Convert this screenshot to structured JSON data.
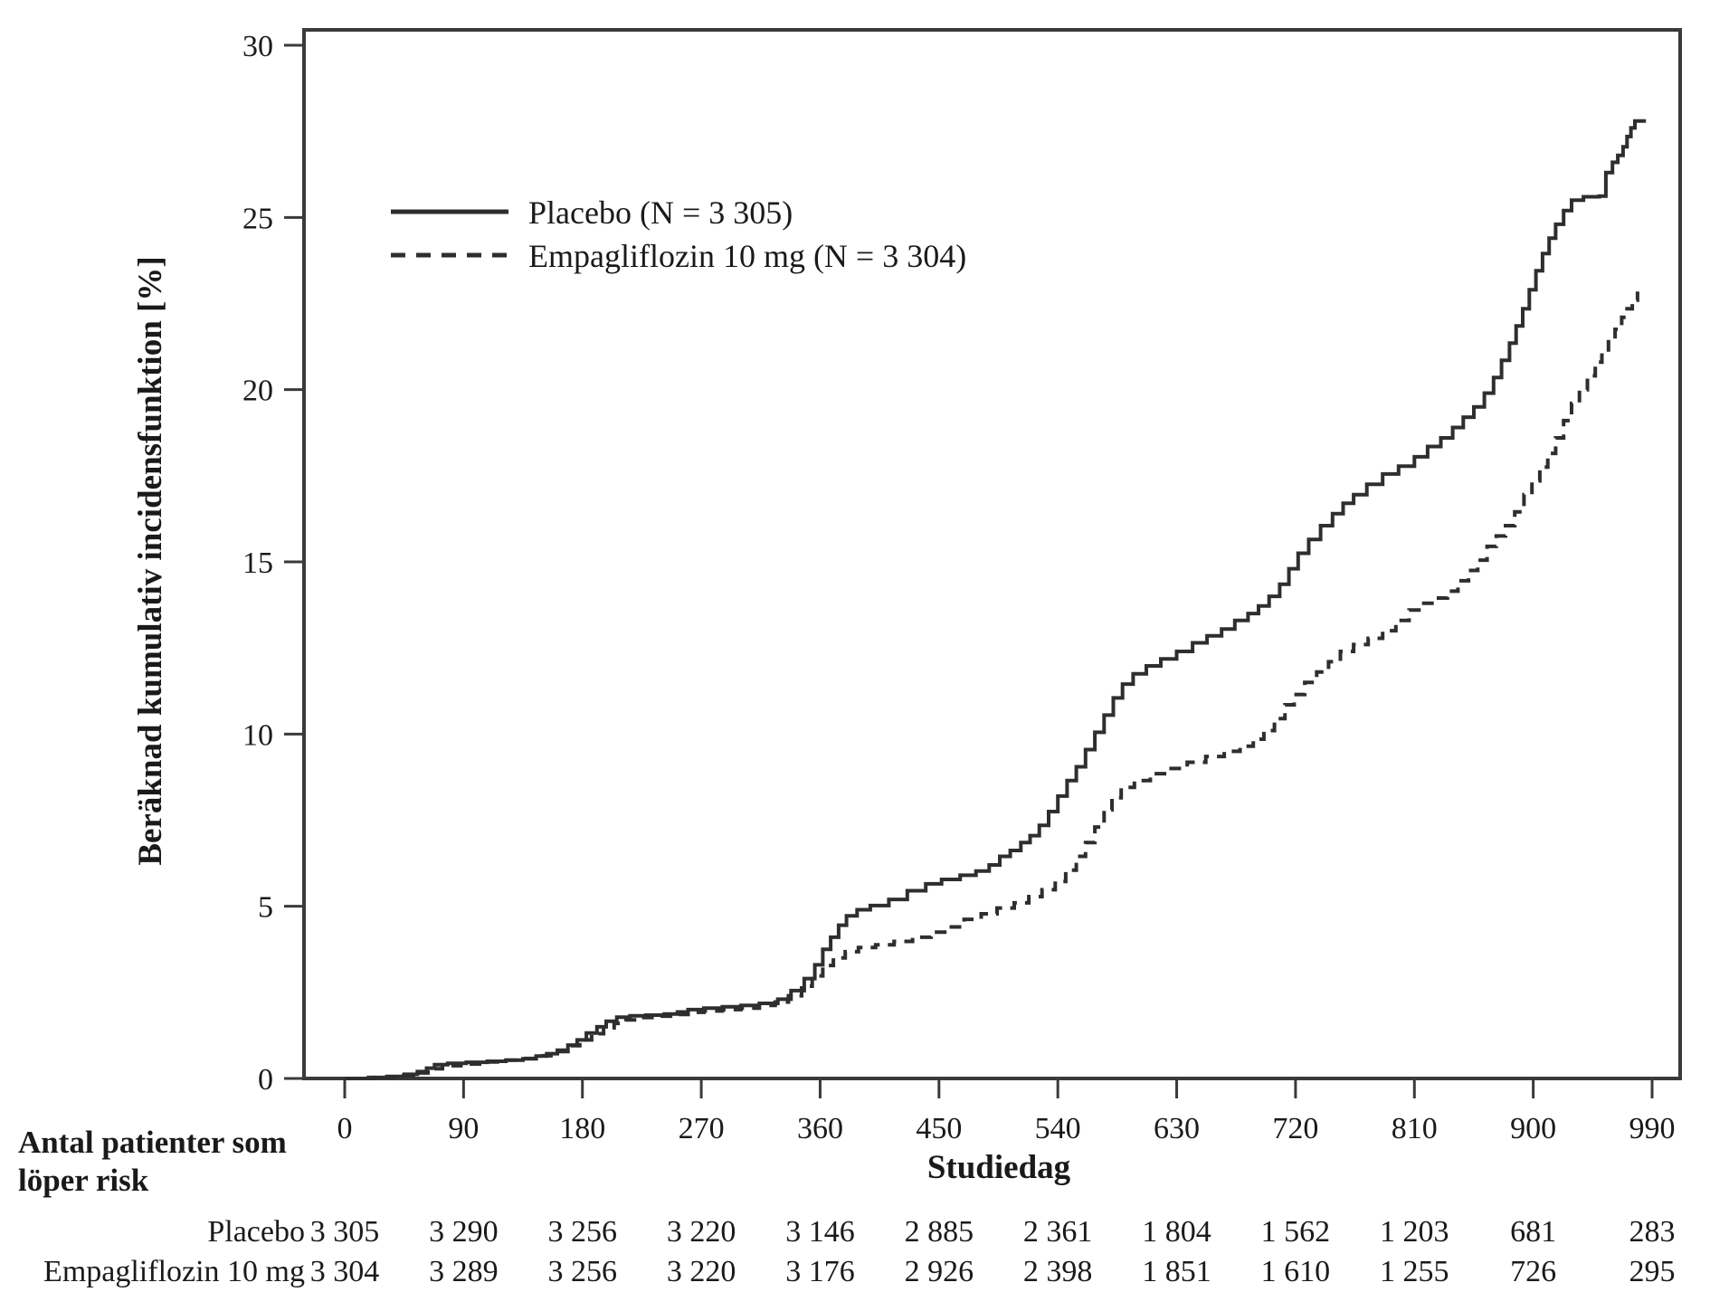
{
  "colors": {
    "line": "#2e2e2e",
    "axis": "#3a3a3a",
    "text": "#1a1a1a",
    "background": "#ffffff"
  },
  "chart_data": {
    "type": "line",
    "subtype": "step-cumulative-incidence",
    "title": "",
    "xlabel": "Studiedag",
    "ylabel": "Beräknad kumulativ incidensfunktion [%]",
    "xlim": [
      0,
      990
    ],
    "ylim": [
      0,
      30
    ],
    "x_ticks": [
      0,
      90,
      180,
      270,
      360,
      450,
      540,
      630,
      720,
      810,
      900,
      990
    ],
    "y_ticks": [
      0,
      5,
      10,
      15,
      20,
      25,
      30
    ],
    "grid": false,
    "legend_position": "upper-left-inside",
    "legend": [
      {
        "label": "Placebo (N = 3 305)",
        "style": "solid"
      },
      {
        "label": "Empagliflozin 10 mg (N = 3 304)",
        "style": "dashed"
      }
    ],
    "series": [
      {
        "name": "Placebo (N = 3 305)",
        "style": "solid",
        "points": [
          [
            0,
            0
          ],
          [
            18,
            0.03
          ],
          [
            32,
            0.06
          ],
          [
            45,
            0.12
          ],
          [
            55,
            0.2
          ],
          [
            62,
            0.3
          ],
          [
            68,
            0.4
          ],
          [
            78,
            0.44
          ],
          [
            92,
            0.47
          ],
          [
            108,
            0.5
          ],
          [
            122,
            0.53
          ],
          [
            135,
            0.57
          ],
          [
            145,
            0.65
          ],
          [
            153,
            0.72
          ],
          [
            161,
            0.82
          ],
          [
            169,
            0.97
          ],
          [
            176,
            1.12
          ],
          [
            183,
            1.32
          ],
          [
            191,
            1.5
          ],
          [
            198,
            1.66
          ],
          [
            206,
            1.78
          ],
          [
            216,
            1.82
          ],
          [
            228,
            1.84
          ],
          [
            242,
            1.87
          ],
          [
            252,
            1.93
          ],
          [
            260,
            2.0
          ],
          [
            272,
            2.04
          ],
          [
            286,
            2.08
          ],
          [
            300,
            2.12
          ],
          [
            314,
            2.18
          ],
          [
            328,
            2.3
          ],
          [
            338,
            2.55
          ],
          [
            348,
            2.9
          ],
          [
            356,
            3.3
          ],
          [
            362,
            3.75
          ],
          [
            368,
            4.1
          ],
          [
            374,
            4.45
          ],
          [
            380,
            4.72
          ],
          [
            388,
            4.9
          ],
          [
            398,
            5.02
          ],
          [
            412,
            5.2
          ],
          [
            426,
            5.45
          ],
          [
            440,
            5.65
          ],
          [
            452,
            5.78
          ],
          [
            466,
            5.9
          ],
          [
            478,
            6.02
          ],
          [
            488,
            6.2
          ],
          [
            496,
            6.45
          ],
          [
            504,
            6.62
          ],
          [
            512,
            6.85
          ],
          [
            519,
            7.05
          ],
          [
            526,
            7.35
          ],
          [
            533,
            7.75
          ],
          [
            540,
            8.2
          ],
          [
            547,
            8.65
          ],
          [
            554,
            9.05
          ],
          [
            561,
            9.55
          ],
          [
            568,
            10.05
          ],
          [
            575,
            10.55
          ],
          [
            582,
            11.05
          ],
          [
            589,
            11.45
          ],
          [
            597,
            11.75
          ],
          [
            607,
            11.98
          ],
          [
            618,
            12.18
          ],
          [
            630,
            12.4
          ],
          [
            642,
            12.65
          ],
          [
            653,
            12.85
          ],
          [
            664,
            13.05
          ],
          [
            674,
            13.3
          ],
          [
            684,
            13.5
          ],
          [
            692,
            13.72
          ],
          [
            700,
            14.0
          ],
          [
            708,
            14.35
          ],
          [
            715,
            14.8
          ],
          [
            722,
            15.25
          ],
          [
            730,
            15.65
          ],
          [
            739,
            16.05
          ],
          [
            748,
            16.4
          ],
          [
            756,
            16.7
          ],
          [
            764,
            16.95
          ],
          [
            774,
            17.25
          ],
          [
            786,
            17.55
          ],
          [
            798,
            17.78
          ],
          [
            810,
            18.05
          ],
          [
            820,
            18.35
          ],
          [
            830,
            18.6
          ],
          [
            839,
            18.9
          ],
          [
            847,
            19.2
          ],
          [
            855,
            19.5
          ],
          [
            863,
            19.9
          ],
          [
            870,
            20.35
          ],
          [
            876,
            20.85
          ],
          [
            882,
            21.35
          ],
          [
            887,
            21.85
          ],
          [
            892,
            22.35
          ],
          [
            897,
            22.9
          ],
          [
            902,
            23.45
          ],
          [
            907,
            23.95
          ],
          [
            912,
            24.4
          ],
          [
            917,
            24.8
          ],
          [
            923,
            25.2
          ],
          [
            929,
            25.5
          ],
          [
            938,
            25.6
          ],
          [
            950,
            25.62
          ],
          [
            955,
            26.3
          ],
          [
            960,
            26.6
          ],
          [
            964,
            26.8
          ],
          [
            968,
            27.05
          ],
          [
            971,
            27.35
          ],
          [
            974,
            27.6
          ],
          [
            977,
            27.8
          ],
          [
            984,
            27.85
          ]
        ]
      },
      {
        "name": "Empagliflozin 10 mg (N = 3 304)",
        "style": "dashed",
        "points": [
          [
            0,
            0
          ],
          [
            22,
            0.03
          ],
          [
            38,
            0.08
          ],
          [
            52,
            0.16
          ],
          [
            63,
            0.28
          ],
          [
            74,
            0.37
          ],
          [
            88,
            0.42
          ],
          [
            104,
            0.48
          ],
          [
            120,
            0.53
          ],
          [
            134,
            0.58
          ],
          [
            148,
            0.66
          ],
          [
            159,
            0.78
          ],
          [
            169,
            0.95
          ],
          [
            178,
            1.12
          ],
          [
            187,
            1.3
          ],
          [
            196,
            1.47
          ],
          [
            204,
            1.6
          ],
          [
            213,
            1.7
          ],
          [
            224,
            1.77
          ],
          [
            237,
            1.81
          ],
          [
            250,
            1.86
          ],
          [
            260,
            1.92
          ],
          [
            272,
            1.96
          ],
          [
            286,
            2.0
          ],
          [
            300,
            2.04
          ],
          [
            314,
            2.12
          ],
          [
            326,
            2.22
          ],
          [
            336,
            2.4
          ],
          [
            346,
            2.68
          ],
          [
            354,
            2.98
          ],
          [
            362,
            3.28
          ],
          [
            370,
            3.5
          ],
          [
            379,
            3.68
          ],
          [
            389,
            3.8
          ],
          [
            402,
            3.88
          ],
          [
            416,
            3.98
          ],
          [
            430,
            4.1
          ],
          [
            444,
            4.25
          ],
          [
            457,
            4.4
          ],
          [
            469,
            4.62
          ],
          [
            482,
            4.78
          ],
          [
            494,
            4.95
          ],
          [
            507,
            5.1
          ],
          [
            518,
            5.28
          ],
          [
            528,
            5.48
          ],
          [
            538,
            5.72
          ],
          [
            546,
            6.05
          ],
          [
            554,
            6.45
          ],
          [
            561,
            6.85
          ],
          [
            568,
            7.3
          ],
          [
            575,
            7.8
          ],
          [
            581,
            8.15
          ],
          [
            588,
            8.45
          ],
          [
            598,
            8.65
          ],
          [
            610,
            8.85
          ],
          [
            623,
            9.0
          ],
          [
            638,
            9.18
          ],
          [
            652,
            9.35
          ],
          [
            666,
            9.5
          ],
          [
            678,
            9.65
          ],
          [
            688,
            9.85
          ],
          [
            696,
            10.1
          ],
          [
            704,
            10.45
          ],
          [
            712,
            10.85
          ],
          [
            719,
            11.15
          ],
          [
            727,
            11.5
          ],
          [
            736,
            11.8
          ],
          [
            745,
            12.1
          ],
          [
            754,
            12.4
          ],
          [
            764,
            12.6
          ],
          [
            775,
            12.78
          ],
          [
            786,
            13.0
          ],
          [
            796,
            13.3
          ],
          [
            806,
            13.6
          ],
          [
            815,
            13.8
          ],
          [
            825,
            13.95
          ],
          [
            835,
            14.15
          ],
          [
            843,
            14.45
          ],
          [
            851,
            14.75
          ],
          [
            858,
            15.05
          ],
          [
            865,
            15.45
          ],
          [
            872,
            15.75
          ],
          [
            879,
            16.05
          ],
          [
            886,
            16.45
          ],
          [
            893,
            16.95
          ],
          [
            899,
            17.35
          ],
          [
            905,
            17.75
          ],
          [
            911,
            18.15
          ],
          [
            917,
            18.6
          ],
          [
            923,
            19.1
          ],
          [
            929,
            19.6
          ],
          [
            935,
            20.0
          ],
          [
            941,
            20.4
          ],
          [
            947,
            20.8
          ],
          [
            952,
            21.1
          ],
          [
            957,
            21.45
          ],
          [
            962,
            21.75
          ],
          [
            967,
            22.1
          ],
          [
            971,
            22.35
          ],
          [
            975,
            22.6
          ],
          [
            979,
            22.85
          ]
        ]
      }
    ]
  },
  "risk_table": {
    "header_line1": "Antal patienter som",
    "header_line2": "löper risk",
    "columns_days": [
      0,
      90,
      180,
      270,
      360,
      450,
      540,
      630,
      720,
      810,
      900,
      990
    ],
    "rows": [
      {
        "label": "Placebo",
        "values": [
          "3 305",
          "3 290",
          "3 256",
          "3 220",
          "3 146",
          "2 885",
          "2 361",
          "1 804",
          "1 562",
          "1 203",
          "681",
          "283"
        ]
      },
      {
        "label": "Empagliflozin 10 mg",
        "values": [
          "3 304",
          "3 289",
          "3 256",
          "3 220",
          "3 176",
          "2 926",
          "2 398",
          "1 851",
          "1 610",
          "1 255",
          "726",
          "295"
        ]
      }
    ]
  }
}
